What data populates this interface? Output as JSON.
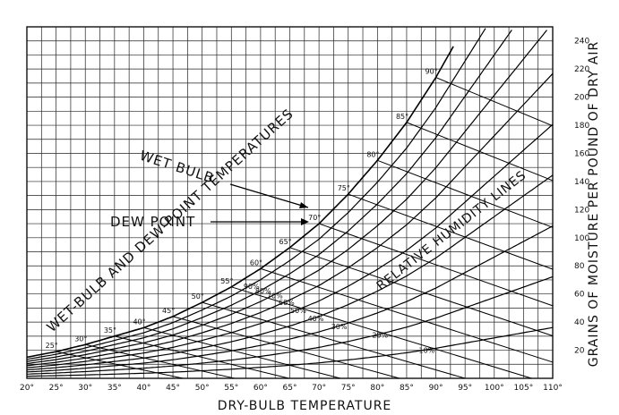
{
  "chart_data": {
    "type": "line",
    "title": "",
    "xlabel": "DRY-BULB TEMPERATURE",
    "ylabel": "GRAINS OF MOISTURE PER POUND OF DRY AIR",
    "xlim": [
      20,
      110
    ],
    "ylim": [
      0,
      250
    ],
    "grid": true,
    "x_ticks": [
      20,
      25,
      30,
      35,
      40,
      45,
      50,
      55,
      60,
      65,
      70,
      75,
      80,
      85,
      90,
      95,
      100,
      105,
      110
    ],
    "x_tick_labels": [
      "20°",
      "25°",
      "30°",
      "35°",
      "40°",
      "45°",
      "50°",
      "55°",
      "60°",
      "65°",
      "70°",
      "75°",
      "80°",
      "85°",
      "90°",
      "95°",
      "100°",
      "105°",
      "110°"
    ],
    "y_ticks": [
      20,
      40,
      60,
      80,
      100,
      120,
      140,
      160,
      180,
      200,
      220,
      240
    ],
    "y_tick_labels": [
      "20",
      "40",
      "60",
      "80",
      "100",
      "120",
      "140",
      "160",
      "180",
      "200",
      "220",
      "240"
    ],
    "saturation_curve": {
      "x": [
        20,
        25,
        30,
        35,
        40,
        45,
        50,
        55,
        60,
        65,
        70,
        75,
        80,
        85,
        90
      ],
      "y": [
        15,
        19,
        24,
        30,
        36,
        44,
        54,
        65,
        78,
        93,
        110,
        131,
        155,
        182,
        214
      ]
    },
    "relative_humidity_lines": {
      "labels": [
        "90%",
        "80%",
        "70%",
        "60%",
        "50%",
        "40%",
        "30%",
        "20%",
        "10%"
      ],
      "rh": [
        0.9,
        0.8,
        0.7,
        0.6,
        0.5,
        0.4,
        0.3,
        0.2,
        0.1
      ]
    },
    "wet_bulb_labels": [
      "25°",
      "30°",
      "35°",
      "40°",
      "45°",
      "50°",
      "55°",
      "60°",
      "65°",
      "70°",
      "75°",
      "80°",
      "85°",
      "90°"
    ],
    "annotations": {
      "wet_bulb": "WET BULB",
      "dew_point": "DEW POINT",
      "wet_dew_temps": "WET-BULB AND DEW-POINT TEMPERATURES",
      "rh_lines": "RELATIVE HUMIDITY LINES"
    }
  }
}
